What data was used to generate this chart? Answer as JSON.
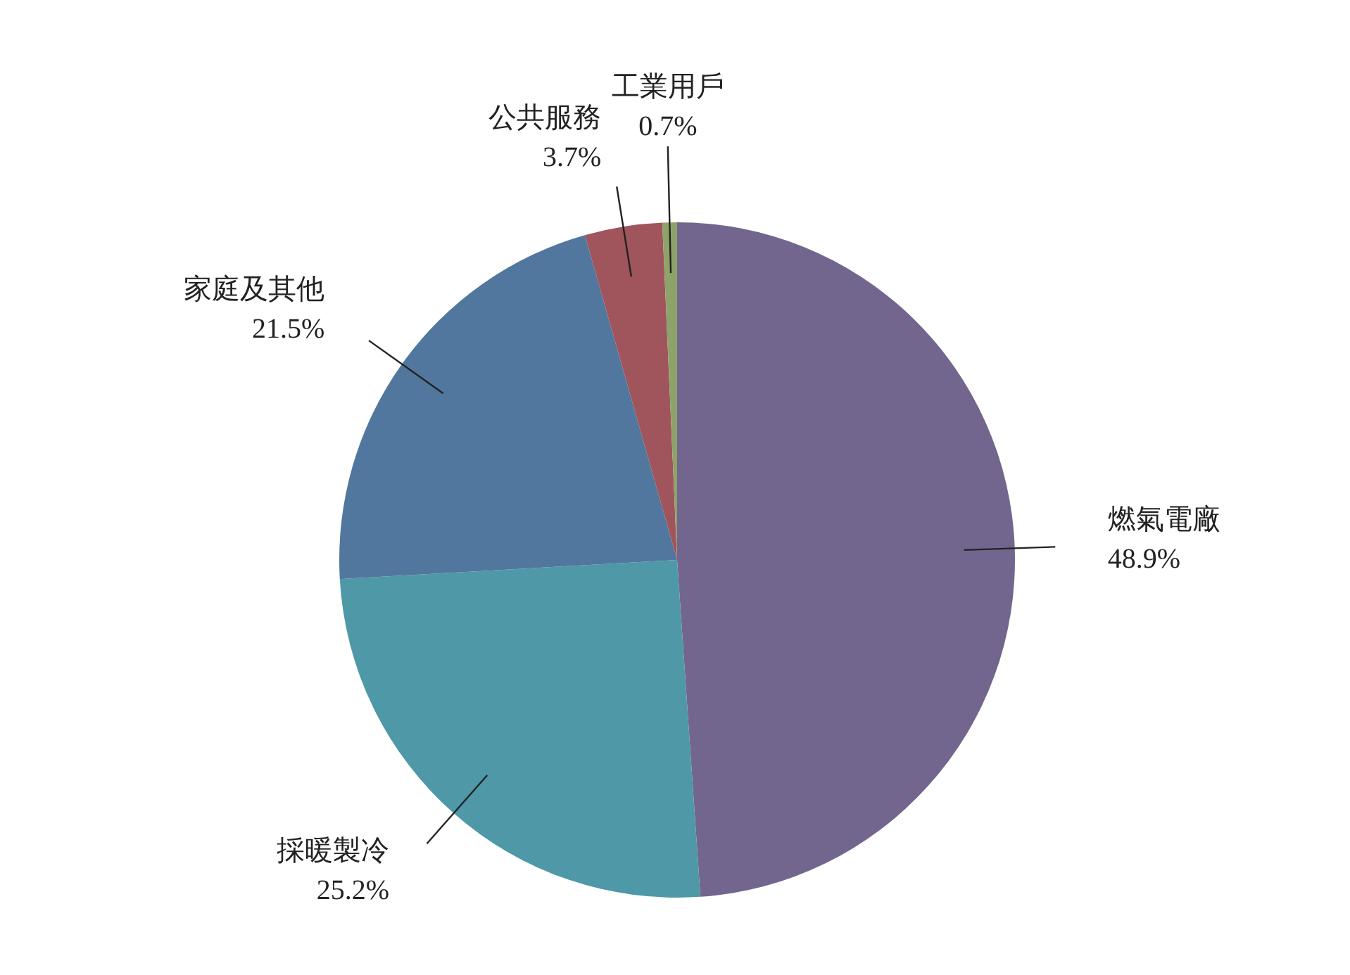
{
  "chart_data": {
    "type": "pie",
    "categories": [
      "燃氣電廠",
      "採暖製冷",
      "家庭及其他",
      "公共服務",
      "工業用戶"
    ],
    "values": [
      48.9,
      25.2,
      21.5,
      3.7,
      0.7
    ],
    "colors": [
      "#72668f",
      "#4f98a8",
      "#52779e",
      "#a0545c",
      "#8ea36a"
    ],
    "value_labels": [
      "48.9%",
      "25.2%",
      "21.5%",
      "3.7%",
      "0.7%"
    ]
  }
}
